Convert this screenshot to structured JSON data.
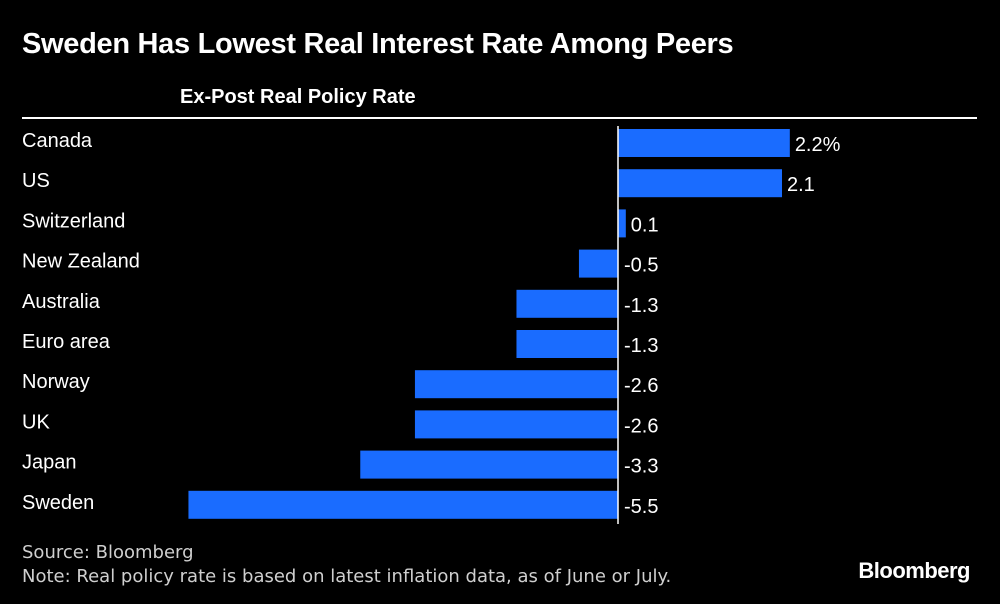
{
  "title": "Sweden Has Lowest Real Interest Rate Among Peers",
  "chart_data": {
    "type": "bar",
    "orientation": "horizontal",
    "subtitle": "Ex-Post Real Policy Rate",
    "categories": [
      "Canada",
      "US",
      "Switzerland",
      "New Zealand",
      "Australia",
      "Euro area",
      "Norway",
      "UK",
      "Japan",
      "Sweden"
    ],
    "values": [
      2.2,
      2.1,
      0.1,
      -0.5,
      -1.3,
      -1.3,
      -2.6,
      -2.6,
      -3.3,
      -5.5
    ],
    "value_labels": [
      "2.2%",
      "2.1",
      "0.1",
      "-0.5",
      "-1.3",
      "-1.3",
      "-2.6",
      "-2.6",
      "-3.3",
      "-5.5"
    ],
    "xlim": [
      -5.5,
      2.2
    ],
    "grid": false,
    "bar_color": "#1a6cff",
    "axis_color": "#ffffff"
  },
  "source": "Source: Bloomberg",
  "note": "Note: Real policy rate is based on latest inflation data, as of June or July.",
  "brand": "Bloomberg"
}
